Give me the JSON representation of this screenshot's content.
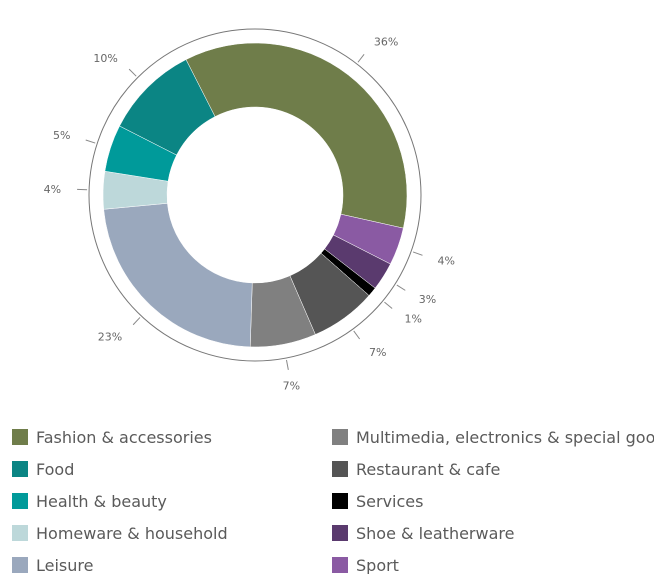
{
  "chart_data": {
    "type": "pie",
    "donut": true,
    "slices": [
      {
        "label": "Fashion & accessories",
        "value": 36,
        "value_label": "36%",
        "color": "#6f7d4a"
      },
      {
        "label": "Sport",
        "value": 4,
        "value_label": "4%",
        "color": "#8a5aa3"
      },
      {
        "label": "Shoe & leatherware",
        "value": 3,
        "value_label": "3%",
        "color": "#5a3a6e"
      },
      {
        "label": "Services",
        "value": 1,
        "value_label": "1%",
        "color": "#000000"
      },
      {
        "label": "Restaurant & cafe",
        "value": 7,
        "value_label": "7%",
        "color": "#555555"
      },
      {
        "label": "Multimedia, electronics & special goods",
        "value": 7,
        "value_label": "7%",
        "color": "#808080"
      },
      {
        "label": "Leisure",
        "value": 23,
        "value_label": "23%",
        "color": "#9aa8bd"
      },
      {
        "label": "Homeware & household",
        "value": 4,
        "value_label": "4%",
        "color": "#bdd8da"
      },
      {
        "label": "Health & beauty",
        "value": 5,
        "value_label": "5%",
        "color": "#009a9a"
      },
      {
        "label": "Food",
        "value": 10,
        "value_label": "10%",
        "color": "#0b8584"
      }
    ],
    "legend": {
      "placement": "bottom",
      "columns": [
        [
          "Fashion & accessories",
          "Food",
          "Health & beauty",
          "Homeware & household",
          "Leisure"
        ],
        [
          "Multimedia, electronics & special goods",
          "Restaurant & cafe",
          "Services",
          "Shoe & leatherware",
          "Sport"
        ]
      ]
    }
  }
}
